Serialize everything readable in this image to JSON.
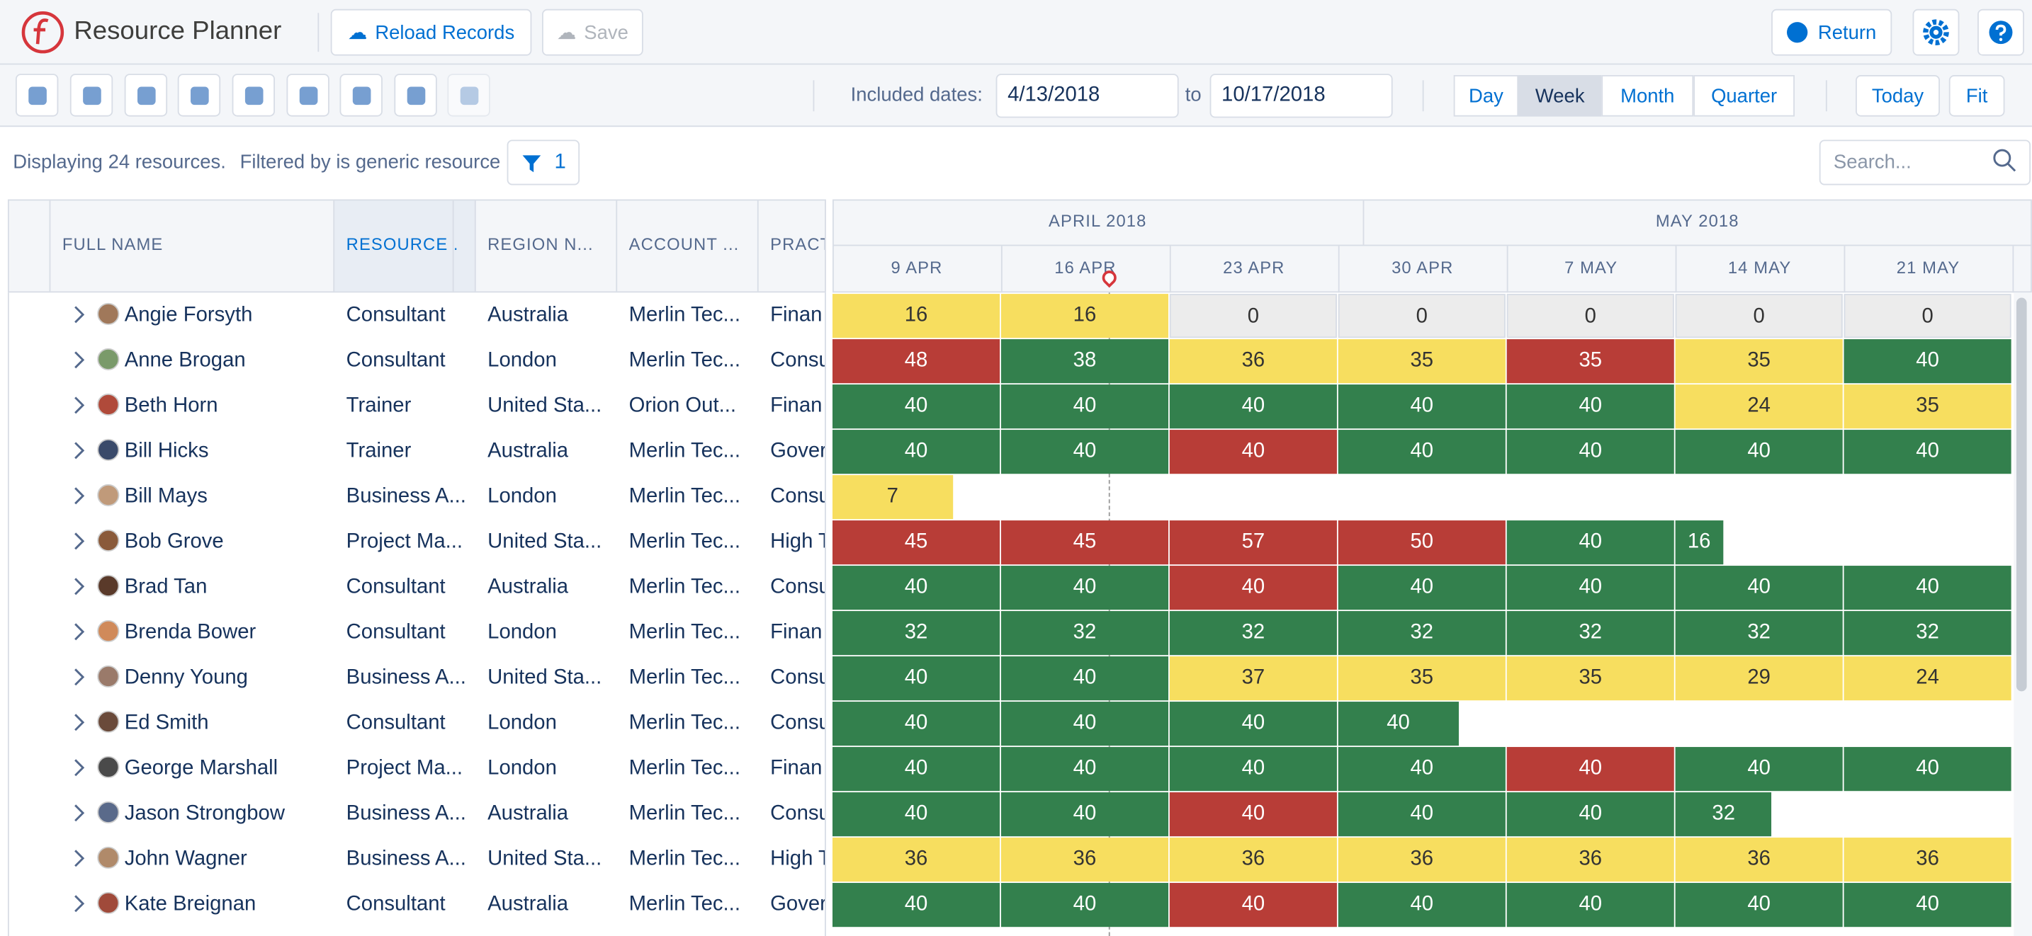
{
  "header": {
    "app_title": "Resource Planner",
    "reload": "Reload Records",
    "save": "Save",
    "return": "Return"
  },
  "toolbar": {
    "included_dates_label": "Included dates:",
    "start_date": "4/13/2018",
    "to": "to",
    "end_date": "10/17/2018",
    "views": [
      "Day",
      "Week",
      "Month",
      "Quarter"
    ],
    "selected_view": "Week",
    "today": "Today",
    "fit": "Fit"
  },
  "status": {
    "text": "Displaying 24 resources.",
    "filter_text": "Filtered by is generic resource",
    "filter_count": 1,
    "search_placeholder": "Search..."
  },
  "status_colors": {
    "yellow": "#f7de5f",
    "red": "#b83d37",
    "green": "#33804d",
    "gray": "#ececec"
  },
  "table": {
    "columns": [
      "FULL NAME",
      "RESOURCE ...",
      "REGION N...",
      "ACCOUNT ...",
      "PRACT"
    ],
    "rows": [
      {
        "name": "Angie Forsyth",
        "resource": "Consultant",
        "region": "Australia",
        "account": "Merlin Tec...",
        "practice": "Finan",
        "hours": [
          16,
          16,
          0,
          0,
          0,
          0,
          0
        ],
        "status": [
          "yellow",
          "yellow",
          "gray",
          "gray",
          "gray",
          "gray",
          "gray"
        ]
      },
      {
        "name": "Anne Brogan",
        "resource": "Consultant",
        "region": "London",
        "account": "Merlin Tec...",
        "practice": "Consu",
        "hours": [
          48,
          38,
          36,
          35,
          35,
          35,
          40
        ],
        "status": [
          "red",
          "green",
          "yellow",
          "yellow",
          "red",
          "yellow",
          "green"
        ]
      },
      {
        "name": "Beth Horn",
        "resource": "Trainer",
        "region": "United Sta...",
        "account": "Orion Out...",
        "practice": "Finan",
        "hours": [
          40,
          40,
          40,
          40,
          40,
          24,
          35
        ],
        "status": [
          "green",
          "green",
          "green",
          "green",
          "green",
          "yellow",
          "yellow"
        ]
      },
      {
        "name": "Bill Hicks",
        "resource": "Trainer",
        "region": "Australia",
        "account": "Merlin Tec...",
        "practice": "Gover",
        "hours": [
          40,
          40,
          40,
          40,
          40,
          40,
          40
        ],
        "status": [
          "green",
          "green",
          "red",
          "green",
          "green",
          "green",
          "green"
        ]
      },
      {
        "name": "Bill Mays",
        "resource": "Business A...",
        "region": "London",
        "account": "Merlin Tec...",
        "practice": "Consu",
        "hours": [
          7
        ],
        "status": [
          "yellow"
        ]
      },
      {
        "name": "Bob Grove",
        "resource": "Project Ma...",
        "region": "United Sta...",
        "account": "Merlin Tec...",
        "practice": "High T",
        "hours": [
          45,
          45,
          57,
          50,
          40,
          16
        ],
        "status": [
          "red",
          "red",
          "red",
          "red",
          "green",
          "green"
        ]
      },
      {
        "name": "Brad Tan",
        "resource": "Consultant",
        "region": "Australia",
        "account": "Merlin Tec...",
        "practice": "Consu",
        "hours": [
          40,
          40,
          40,
          40,
          40,
          40,
          40
        ],
        "status": [
          "green",
          "green",
          "red",
          "green",
          "green",
          "green",
          "green"
        ]
      },
      {
        "name": "Brenda Bower",
        "resource": "Consultant",
        "region": "London",
        "account": "Merlin Tec...",
        "practice": "Finan",
        "hours": [
          32,
          32,
          32,
          32,
          32,
          32,
          32
        ],
        "status": [
          "green",
          "green",
          "green",
          "green",
          "green",
          "green",
          "green"
        ]
      },
      {
        "name": "Denny Young",
        "resource": "Business A...",
        "region": "United Sta...",
        "account": "Merlin Tec...",
        "practice": "Consu",
        "hours": [
          40,
          40,
          37,
          35,
          35,
          29,
          24
        ],
        "status": [
          "green",
          "green",
          "yellow",
          "yellow",
          "yellow",
          "yellow",
          "yellow"
        ]
      },
      {
        "name": "Ed Smith",
        "resource": "Consultant",
        "region": "London",
        "account": "Merlin Tec...",
        "practice": "Consu",
        "hours": [
          40,
          40,
          40,
          40
        ],
        "status": [
          "green",
          "green",
          "green",
          "green"
        ]
      },
      {
        "name": "George Marshall",
        "resource": "Project Ma...",
        "region": "London",
        "account": "Merlin Tec...",
        "practice": "Finan",
        "hours": [
          40,
          40,
          40,
          40,
          40,
          40,
          40
        ],
        "status": [
          "green",
          "green",
          "green",
          "green",
          "red",
          "green",
          "green"
        ]
      },
      {
        "name": "Jason Strongbow",
        "resource": "Business A...",
        "region": "Australia",
        "account": "Merlin Tec...",
        "practice": "Consu",
        "hours": [
          40,
          40,
          40,
          40,
          40,
          32
        ],
        "status": [
          "green",
          "green",
          "red",
          "green",
          "green",
          "green"
        ]
      },
      {
        "name": "John Wagner",
        "resource": "Business A...",
        "region": "United Sta...",
        "account": "Merlin Tec...",
        "practice": "High T",
        "hours": [
          36,
          36,
          36,
          36,
          36,
          36,
          36
        ],
        "status": [
          "yellow",
          "yellow",
          "yellow",
          "yellow",
          "yellow",
          "yellow",
          "yellow"
        ]
      },
      {
        "name": "Kate Breignan",
        "resource": "Consultant",
        "region": "Australia",
        "account": "Merlin Tec...",
        "practice": "Gover",
        "hours": [
          40,
          40,
          40,
          40,
          40,
          40,
          40
        ],
        "status": [
          "green",
          "green",
          "red",
          "green",
          "green",
          "green",
          "green"
        ]
      }
    ]
  },
  "schedule": {
    "months": [
      "APRIL 2018",
      "MAY 2018"
    ],
    "weeks": [
      "9 APR",
      "16 APR",
      "23 APR",
      "30 APR",
      "7 MAY",
      "14 MAY",
      "21 MAY"
    ]
  }
}
